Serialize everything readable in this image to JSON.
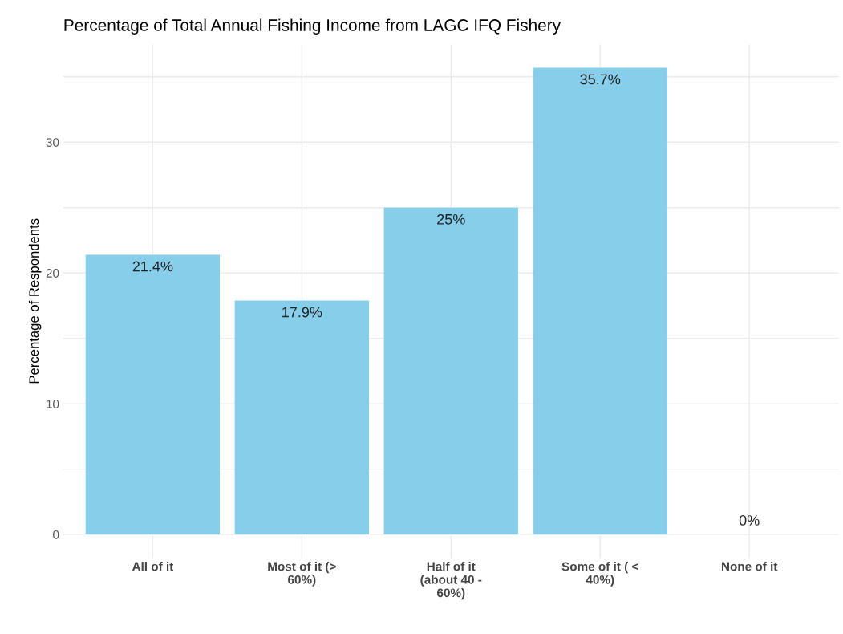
{
  "chart_data": {
    "type": "bar",
    "title": "Percentage of Total Annual Fishing Income from LAGC IFQ Fishery",
    "ylabel": "Percentage of Respondents",
    "categories": [
      "All of it",
      "Most of it (>\n60%)",
      "Half of it\n(about 40 -\n60%)",
      "Some of it ( <\n40%)",
      "None of it"
    ],
    "values": [
      21.4,
      17.9,
      25,
      35.7,
      0
    ],
    "value_labels": [
      "21.4%",
      "17.9%",
      "25%",
      "35.7%",
      "0%"
    ],
    "color": "#87ceeb",
    "ylim": [
      -1.785,
      37.485
    ],
    "yticks": [
      0,
      {
        "value": 5,
        "label": null
      },
      10,
      {
        "value": 15,
        "label": null
      },
      20,
      {
        "value": 25,
        "label": null
      },
      30,
      {
        "value": 35,
        "label": null
      }
    ],
    "grid": true,
    "legend": false
  }
}
